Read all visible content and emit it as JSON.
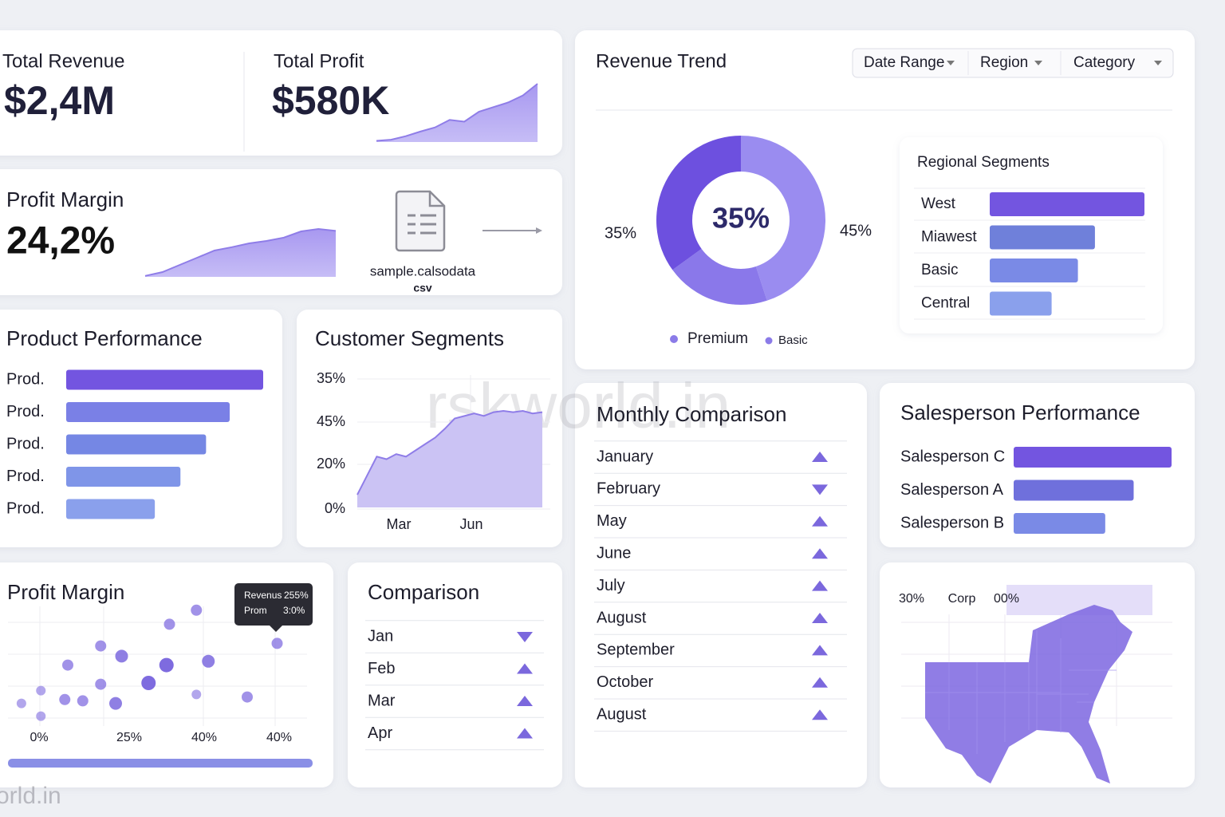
{
  "kpis": [
    {
      "label": "Total Revenue",
      "value": "$2,4M"
    },
    {
      "label": "Total Profit",
      "value": "$580K",
      "trend": [
        2,
        4,
        10,
        18,
        25,
        38,
        35,
        52,
        60,
        68,
        80,
        100
      ]
    }
  ],
  "profit_margin_kpi": {
    "label": "Profit Margin",
    "value": "24,2%",
    "trend": [
      2,
      10,
      25,
      40,
      55,
      62,
      70,
      75,
      82,
      95,
      100,
      96
    ]
  },
  "file": {
    "name": "sample.calsodata",
    "extension": "csv"
  },
  "revenue_trend": {
    "title": "Revenue Trend",
    "filters": [
      "Date Range",
      "Region",
      "Category"
    ],
    "donut": {
      "center_label": "35%",
      "left_label": "35%",
      "right_label": "45%",
      "values": [
        45,
        20,
        35
      ],
      "colors": [
        "#9a8cf0",
        "#8a78ea",
        "#6d50df"
      ],
      "legend": [
        {
          "name": "Premium",
          "color": "#8b7be8"
        },
        {
          "name": "Basic",
          "color": "#8b7be8"
        }
      ]
    },
    "regional_segments": {
      "title": "Regional Segments",
      "categories": [
        "West",
        "Miawest",
        "Basic",
        "Central"
      ],
      "values": [
        100,
        68,
        57,
        40
      ],
      "colors": [
        "#7355e0",
        "#6f80da",
        "#7a8ae6",
        "#8aa0ec"
      ]
    }
  },
  "product_performance": {
    "title": "Product Performance",
    "categories": [
      "Prod.",
      "Prod.",
      "Prod.",
      "Prod.",
      "Prod."
    ],
    "values": [
      100,
      83,
      71,
      58,
      45
    ],
    "colors": [
      "#7355e0",
      "#7a80e6",
      "#7587e4",
      "#7f95e8",
      "#8aa0ec"
    ]
  },
  "customer_segments": {
    "title": "Customer Segments",
    "y_labels": [
      "35%",
      "45%",
      "20%",
      "0%"
    ],
    "x_labels": [
      "Mar",
      "Jun"
    ],
    "values": [
      10,
      25,
      40,
      38,
      42,
      40,
      45,
      50,
      55,
      62,
      70,
      72,
      74,
      72,
      75,
      76,
      75,
      76,
      74,
      75
    ],
    "color": "#cbc3f4"
  },
  "profit_margin_scatter": {
    "title": "Profit Margin",
    "x_labels": [
      "0%",
      "25%",
      "40%",
      "40%"
    ],
    "points": {
      "x": [
        4.5,
        11,
        11,
        20,
        19,
        25,
        31,
        31,
        36,
        38,
        47,
        53,
        54,
        63,
        67,
        63,
        80,
        90
      ],
      "y": [
        24,
        34,
        14,
        54,
        27,
        26,
        69,
        39,
        24,
        61,
        40,
        54,
        86,
        97,
        57,
        31,
        29,
        71
      ],
      "size": [
        6,
        6,
        6,
        7,
        7,
        7,
        7,
        7,
        8,
        8,
        9,
        9,
        7,
        7,
        8,
        6,
        7,
        7
      ]
    },
    "color": "#7a66de",
    "tooltip": [
      [
        "Revenus",
        "255%"
      ],
      [
        "Prom",
        "3:0%"
      ]
    ]
  },
  "comparison": {
    "title": "Comparison",
    "rows": [
      {
        "label": "Jan",
        "trend": "down"
      },
      {
        "label": "Feb",
        "trend": "up"
      },
      {
        "label": "Mar",
        "trend": "up"
      },
      {
        "label": "Apr",
        "trend": "up"
      }
    ]
  },
  "monthly_comparison": {
    "title": "Monthly Comparison",
    "rows": [
      {
        "label": "January",
        "trend": "up"
      },
      {
        "label": "February",
        "trend": "down"
      },
      {
        "label": "May",
        "trend": "up"
      },
      {
        "label": "June",
        "trend": "up"
      },
      {
        "label": "July",
        "trend": "up"
      },
      {
        "label": "August",
        "trend": "up"
      },
      {
        "label": "September",
        "trend": "up"
      },
      {
        "label": "October",
        "trend": "up"
      },
      {
        "label": "August",
        "trend": "up"
      }
    ]
  },
  "salesperson_performance": {
    "title": "Salesperson Performance",
    "categories": [
      "Salesperson C",
      "Salesperson A",
      "Salesperson B"
    ],
    "values": [
      100,
      76,
      58
    ],
    "colors": [
      "#7355e0",
      "#6f70dc",
      "#7a8ae6"
    ]
  },
  "map": {
    "labels": [
      "30%",
      "Corp",
      "00%"
    ],
    "color": "#7c66e0"
  },
  "watermark": [
    "rskworld.in",
    "orld.in"
  ]
}
